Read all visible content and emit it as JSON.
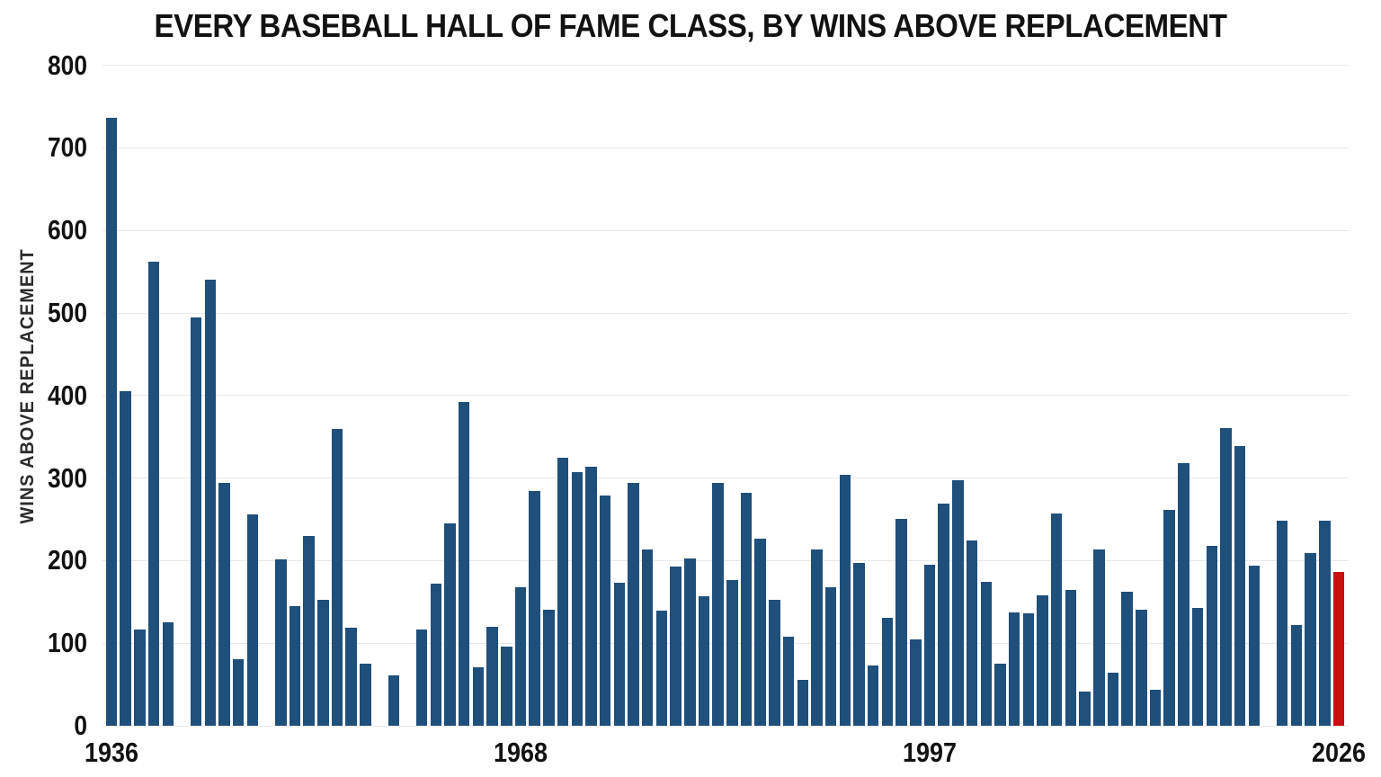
{
  "title": "EVERY BASEBALL HALL OF FAME CLASS, BY WINS ABOVE REPLACEMENT",
  "y_axis": {
    "label": "WINS ABOVE REPLACEMENT",
    "tick_values": [
      0,
      100,
      200,
      300,
      400,
      500,
      600,
      700,
      800
    ]
  },
  "x_axis": {
    "tick_years": [
      1936,
      1968,
      1997,
      2026
    ]
  },
  "colors": {
    "bar_blue": "#1F4F7B",
    "highlight_red": "#C90F0F",
    "gridline": "#E8E8E8",
    "text_dark": "#121212",
    "axis_label": "#2B2B2B",
    "background": "#FFFFFF"
  },
  "chart_data": {
    "type": "bar",
    "title": "EVERY BASEBALL HALL OF FAME CLASS, BY WINS ABOVE REPLACEMENT",
    "xlabel": "",
    "ylabel": "WINS ABOVE REPLACEMENT",
    "ylim": [
      0,
      800
    ],
    "grid": true,
    "legend_position": "none",
    "highlight_year": 2026,
    "years": [
      1936,
      1937,
      1938,
      1939,
      1942,
      1944,
      1945,
      1946,
      1947,
      1948,
      1949,
      1950,
      1951,
      1952,
      1953,
      1954,
      1955,
      1956,
      1957,
      1958,
      1959,
      1960,
      1961,
      1962,
      1963,
      1964,
      1965,
      1966,
      1967,
      1968,
      1969,
      1970,
      1971,
      1972,
      1973,
      1974,
      1975,
      1976,
      1977,
      1978,
      1979,
      1980,
      1981,
      1982,
      1983,
      1984,
      1985,
      1986,
      1987,
      1988,
      1989,
      1990,
      1991,
      1992,
      1993,
      1994,
      1995,
      1996,
      1997,
      1998,
      1999,
      2000,
      2001,
      2002,
      2003,
      2004,
      2005,
      2006,
      2007,
      2008,
      2009,
      2010,
      2011,
      2012,
      2013,
      2014,
      2015,
      2016,
      2017,
      2018,
      2019,
      2020,
      2021,
      2022,
      2023,
      2024,
      2025,
      2026
    ],
    "values": [
      736,
      405,
      117,
      562,
      125,
      0,
      495,
      540,
      294,
      81,
      256,
      0,
      202,
      145,
      230,
      153,
      359,
      119,
      75,
      0,
      61,
      0,
      117,
      172,
      245,
      392,
      71,
      120,
      96,
      168,
      284,
      140,
      325,
      307,
      314,
      279,
      173,
      294,
      213,
      139,
      193,
      203,
      157,
      294,
      177,
      282,
      227,
      153,
      108,
      56,
      214,
      168,
      304,
      197,
      73,
      131,
      251,
      105,
      195,
      269,
      297,
      224,
      174,
      75,
      137,
      136,
      158,
      257,
      164,
      41,
      214,
      64,
      162,
      140,
      44,
      261,
      318,
      143,
      218,
      361,
      339,
      194,
      0,
      248,
      122,
      209,
      248,
      186
    ]
  }
}
